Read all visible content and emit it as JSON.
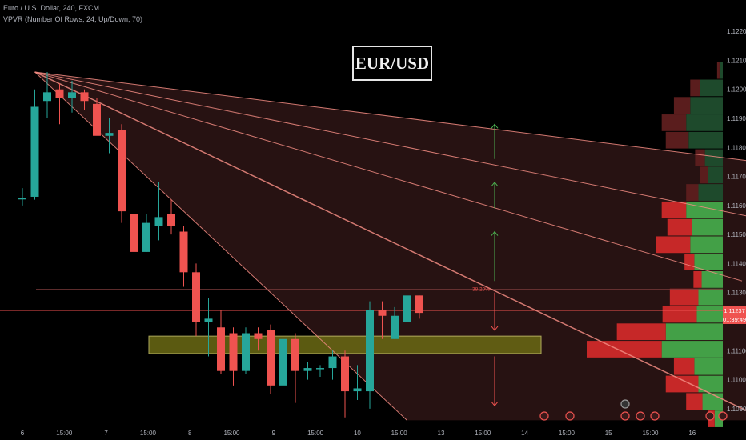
{
  "header": {
    "symbol_line": "Euro / U.S. Dollar, 240, FXCM",
    "indicator_line": "VPVR (Number Of Rows, 24, Up/Down, 70)"
  },
  "chart_title": "EUR/USD",
  "fib_label": "38.20%",
  "current_price": "1.11237",
  "countdown": "01:39:49",
  "colors": {
    "up": "#26a69a",
    "down": "#ef5350",
    "background": "#000000",
    "fan_line": "#f28b82",
    "zone_fill": "#6b6a14",
    "arrow_up": "#4caf50",
    "arrow_down": "#ef5350"
  },
  "chart_data": {
    "type": "candlestick",
    "title": "EUR/USD",
    "ylim": [
      1.1085,
      1.1225
    ],
    "y_ticks": [
      "1.12200",
      "1.12100",
      "1.12000",
      "1.11900",
      "1.11800",
      "1.11700",
      "1.11600",
      "1.11500",
      "1.11400",
      "1.11300",
      "1.11200",
      "1.11100",
      "1.11000",
      "1.10900"
    ],
    "x_ticks": [
      "6",
      "15:00",
      "7",
      "15:00",
      "8",
      "15:00",
      "9",
      "15:00",
      "10",
      "15:00",
      "13",
      "15:00",
      "14",
      "15:00",
      "15",
      "15:00",
      "16"
    ],
    "candles": [
      {
        "o": 1.11625,
        "h": 1.1166,
        "l": 1.116,
        "c": 1.11625
      },
      {
        "o": 1.1163,
        "h": 1.12,
        "l": 1.1162,
        "c": 1.1194
      },
      {
        "o": 1.1196,
        "h": 1.1206,
        "l": 1.119,
        "c": 1.1199
      },
      {
        "o": 1.12,
        "h": 1.1202,
        "l": 1.1188,
        "c": 1.1197
      },
      {
        "o": 1.1197,
        "h": 1.1203,
        "l": 1.1192,
        "c": 1.1199
      },
      {
        "o": 1.1199,
        "h": 1.12,
        "l": 1.1193,
        "c": 1.1196
      },
      {
        "o": 1.1195,
        "h": 1.1197,
        "l": 1.1185,
        "c": 1.1184
      },
      {
        "o": 1.1184,
        "h": 1.119,
        "l": 1.1178,
        "c": 1.1185
      },
      {
        "o": 1.1186,
        "h": 1.1188,
        "l": 1.1154,
        "c": 1.1158
      },
      {
        "o": 1.1157,
        "h": 1.1159,
        "l": 1.1138,
        "c": 1.1144
      },
      {
        "o": 1.1144,
        "h": 1.1157,
        "l": 1.1144,
        "c": 1.1154
      },
      {
        "o": 1.1153,
        "h": 1.1168,
        "l": 1.1148,
        "c": 1.1156
      },
      {
        "o": 1.1157,
        "h": 1.1162,
        "l": 1.115,
        "c": 1.1153
      },
      {
        "o": 1.1151,
        "h": 1.1153,
        "l": 1.1132,
        "c": 1.1137
      },
      {
        "o": 1.1137,
        "h": 1.114,
        "l": 1.1115,
        "c": 1.112
      },
      {
        "o": 1.112,
        "h": 1.1128,
        "l": 1.1108,
        "c": 1.1121
      },
      {
        "o": 1.1118,
        "h": 1.1124,
        "l": 1.1102,
        "c": 1.1103
      },
      {
        "o": 1.1116,
        "h": 1.1118,
        "l": 1.1098,
        "c": 1.1103
      },
      {
        "o": 1.1103,
        "h": 1.1118,
        "l": 1.1102,
        "c": 1.1116
      },
      {
        "o": 1.1116,
        "h": 1.1118,
        "l": 1.111,
        "c": 1.1114
      },
      {
        "o": 1.1117,
        "h": 1.1119,
        "l": 1.1095,
        "c": 1.1098
      },
      {
        "o": 1.1098,
        "h": 1.1116,
        "l": 1.1096,
        "c": 1.1114
      },
      {
        "o": 1.1114,
        "h": 1.1116,
        "l": 1.1092,
        "c": 1.1103
      },
      {
        "o": 1.1103,
        "h": 1.1106,
        "l": 1.11,
        "c": 1.1104
      },
      {
        "o": 1.1104,
        "h": 1.1105,
        "l": 1.1101,
        "c": 1.1104
      },
      {
        "o": 1.1104,
        "h": 1.111,
        "l": 1.11,
        "c": 1.1108
      },
      {
        "o": 1.1108,
        "h": 1.111,
        "l": 1.1087,
        "c": 1.1096
      },
      {
        "o": 1.1096,
        "h": 1.1105,
        "l": 1.1093,
        "c": 1.1097
      },
      {
        "o": 1.1096,
        "h": 1.1127,
        "l": 1.109,
        "c": 1.1124
      },
      {
        "o": 1.1124,
        "h": 1.1127,
        "l": 1.1114,
        "c": 1.1122
      },
      {
        "o": 1.1114,
        "h": 1.1125,
        "l": 1.1114,
        "c": 1.1122
      },
      {
        "o": 1.112,
        "h": 1.1131,
        "l": 1.1118,
        "c": 1.1129
      },
      {
        "o": 1.1129,
        "h": 1.1129,
        "l": 1.1121,
        "c": 1.1123
      }
    ],
    "zone": {
      "y1": 1.1115,
      "y2": 1.1109
    },
    "fib_level": 1.11312,
    "current_price_level": 1.11237,
    "fan_origin": {
      "index": 1,
      "price": 1.1206
    },
    "fan_targets": [
      {
        "price": 1.11746,
        "at_index": 60
      },
      {
        "price": 1.1155,
        "at_index": 60
      },
      {
        "price": 1.1134,
        "at_index": 58
      },
      {
        "price": 1.1086,
        "at_index": 60
      },
      {
        "price": 1.1086,
        "at_index": 31
      }
    ],
    "arrows": [
      {
        "type": "up",
        "index": 38,
        "from": 1.1176,
        "to": 1.1188
      },
      {
        "type": "up",
        "index": 38,
        "from": 1.1159,
        "to": 1.1168
      },
      {
        "type": "up",
        "index": 38,
        "from": 1.1134,
        "to": 1.1151
      },
      {
        "type": "down",
        "index": 38,
        "from": 1.113,
        "to": 1.1117
      },
      {
        "type": "down",
        "index": 38,
        "from": 1.1108,
        "to": 1.1091
      }
    ],
    "volume_profile": [
      {
        "price": 1.12065,
        "up": 4,
        "down": 3
      },
      {
        "price": 1.12005,
        "up": 28,
        "down": 12
      },
      {
        "price": 1.11945,
        "up": 40,
        "down": 20
      },
      {
        "price": 1.11885,
        "up": 45,
        "down": 30
      },
      {
        "price": 1.11825,
        "up": 42,
        "down": 28
      },
      {
        "price": 1.11765,
        "up": 22,
        "down": 12
      },
      {
        "price": 1.11705,
        "up": 18,
        "down": 10
      },
      {
        "price": 1.11645,
        "up": 30,
        "down": 15
      },
      {
        "price": 1.11585,
        "up": 45,
        "down": 30
      },
      {
        "price": 1.11525,
        "up": 38,
        "down": 30
      },
      {
        "price": 1.11465,
        "up": 40,
        "down": 42
      },
      {
        "price": 1.11405,
        "up": 35,
        "down": 12
      },
      {
        "price": 1.11345,
        "up": 26,
        "down": 10
      },
      {
        "price": 1.11285,
        "up": 30,
        "down": 35
      },
      {
        "price": 1.11225,
        "up": 32,
        "down": 42
      },
      {
        "price": 1.11165,
        "up": 70,
        "down": 60
      },
      {
        "price": 1.11105,
        "up": 75,
        "down": 92
      },
      {
        "price": 1.11045,
        "up": 35,
        "down": 25
      },
      {
        "price": 1.10985,
        "up": 30,
        "down": 40
      },
      {
        "price": 1.10925,
        "up": 25,
        "down": 20
      },
      {
        "price": 1.10865,
        "up": 10,
        "down": 8
      }
    ]
  }
}
